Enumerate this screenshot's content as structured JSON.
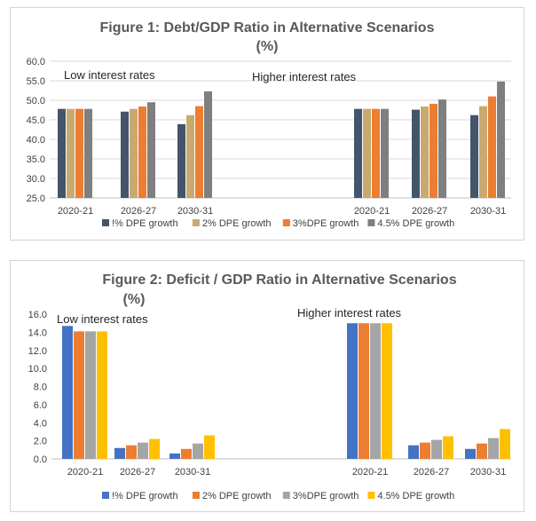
{
  "chart_data": [
    {
      "type": "bar",
      "title": "Figure 1: Debt/GDP Ratio in Alternative Scenarios",
      "subtitle": "(%)",
      "ylim": [
        25.0,
        60.0
      ],
      "yticks": [
        "60.0",
        "55.0",
        "50.0",
        "45.0",
        "40.0",
        "35.0",
        "30.0",
        "25.0"
      ],
      "grid": true,
      "legend_position": "bottom",
      "group_labels": [
        "Low interest rates",
        "Higher interest rates"
      ],
      "categories": [
        "2020-21",
        "2026-27",
        "2030-31",
        "2020-21",
        "2026-27",
        "2030-31"
      ],
      "series": [
        {
          "name": "!% DPE growth",
          "color": "#44546a",
          "values": [
            47.8,
            47.1,
            43.9,
            47.8,
            47.6,
            46.2
          ]
        },
        {
          "name": "2% DPE growth",
          "color": "#c9a96e",
          "values": [
            47.8,
            47.8,
            46.2,
            47.8,
            48.4,
            48.5
          ]
        },
        {
          "name": "3%DPE growth",
          "color": "#ed7d31",
          "values": [
            47.8,
            48.4,
            48.5,
            47.8,
            49.1,
            51.0
          ]
        },
        {
          "name": "4.5% DPE growth",
          "color": "#7f7f7f",
          "values": [
            47.8,
            49.5,
            52.3,
            47.8,
            50.2,
            54.8
          ]
        }
      ]
    },
    {
      "type": "bar",
      "title": "Figure 2: Deficit / GDP Ratio  in Alternative Scenarios",
      "subtitle": "(%)",
      "ylim": [
        0.0,
        16.0
      ],
      "yticks": [
        "16.0",
        "14.0",
        "12.0",
        "10.0",
        "8.0",
        "6.0",
        "4.0",
        "2.0",
        "0.0"
      ],
      "grid": false,
      "legend_position": "bottom",
      "group_labels": [
        "Low interest rates",
        "Higher interest rates"
      ],
      "categories": [
        "2020-21",
        "2026-27",
        "2030-31",
        "2020-21",
        "2026-27",
        "2030-31"
      ],
      "series": [
        {
          "name": "!% DPE growth",
          "color": "#4472c4",
          "values": [
            14.7,
            1.2,
            0.6,
            15.0,
            1.5,
            1.1
          ]
        },
        {
          "name": "2% DPE growth",
          "color": "#ed7d31",
          "values": [
            14.1,
            1.5,
            1.1,
            15.0,
            1.8,
            1.7
          ]
        },
        {
          "name": "3%DPE growth",
          "color": "#a5a5a5",
          "values": [
            14.1,
            1.8,
            1.7,
            15.0,
            2.1,
            2.3
          ]
        },
        {
          "name": "4.5% DPE growth",
          "color": "#ffc000",
          "values": [
            14.1,
            2.2,
            2.6,
            15.0,
            2.5,
            3.3
          ]
        }
      ]
    }
  ]
}
